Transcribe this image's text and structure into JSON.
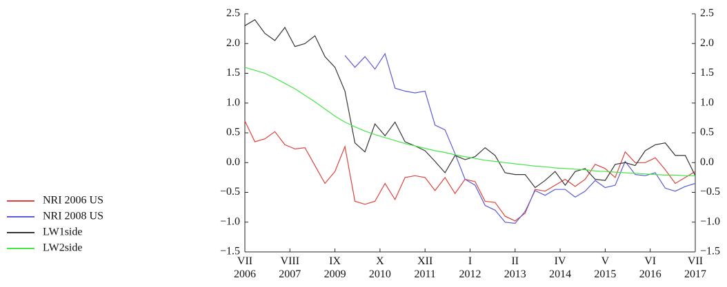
{
  "chart_data": {
    "type": "line",
    "x": [
      0,
      1,
      2,
      3,
      4,
      5,
      6,
      7,
      8,
      9,
      10,
      11,
      12,
      13,
      14,
      15,
      16,
      17,
      18,
      19,
      20,
      21,
      22,
      23,
      24,
      25,
      26,
      27,
      28,
      29,
      30,
      31,
      32,
      33,
      34,
      35,
      36,
      37,
      38,
      39,
      40,
      41,
      42,
      43,
      44,
      45
    ],
    "xlim": [
      0,
      45
    ],
    "xticks": [
      {
        "value": 0,
        "label": "VII\n2006"
      },
      {
        "value": 4.5,
        "label": "VIII\n2007"
      },
      {
        "value": 9,
        "label": "IX\n2009"
      },
      {
        "value": 13.5,
        "label": "X\n2010"
      },
      {
        "value": 18,
        "label": "XII\n2011"
      },
      {
        "value": 22.5,
        "label": "I\n2012"
      },
      {
        "value": 27,
        "label": "II\n2013"
      },
      {
        "value": 31.5,
        "label": "IV\n2014"
      },
      {
        "value": 36,
        "label": "V\n2015"
      },
      {
        "value": 40.5,
        "label": "VI\n2016"
      },
      {
        "value": 45,
        "label": "VII\n2017"
      }
    ],
    "ylim": [
      -1.5,
      2.5
    ],
    "yticks": [
      {
        "value": -1.5,
        "label": "−1.5"
      },
      {
        "value": -1,
        "label": "−1.0"
      },
      {
        "value": -0.5,
        "label": "−0.5"
      },
      {
        "value": 0,
        "label": "0.0"
      },
      0.5,
      {
        "value": 1,
        "label": "1.0"
      },
      1.5,
      {
        "value": 2,
        "label": "2.0"
      },
      2.5
    ],
    "y2lim": [
      -1.5,
      2.5
    ],
    "y2ticks": [
      {
        "value": -1.5,
        "label": "−1.5"
      },
      {
        "value": -1,
        "label": "−1.0"
      },
      {
        "value": -0.5,
        "label": "−0.5"
      },
      {
        "value": 0,
        "label": "0.0"
      },
      0.5,
      {
        "value": 1,
        "label": "1.0"
      },
      1.5,
      {
        "value": 2,
        "label": "2.0"
      },
      2.5
    ],
    "legend": "left",
    "series": [
      {
        "name": "NRI 2006 US",
        "color": "#e0403a",
        "values": [
          0.7,
          0.35,
          0.4,
          0.52,
          0.3,
          0.23,
          0.25,
          -0.05,
          -0.35,
          -0.15,
          0.27,
          -0.65,
          -0.7,
          -0.65,
          -0.35,
          -0.62,
          -0.25,
          -0.22,
          -0.25,
          -0.47,
          -0.25,
          -0.52,
          -0.28,
          -0.32,
          -0.65,
          -0.67,
          -0.9,
          -0.98,
          -0.85,
          -0.45,
          -0.48,
          -0.38,
          -0.28,
          -0.4,
          -0.28,
          -0.03,
          -0.1,
          -0.25,
          0.18,
          0.0,
          0.0,
          0.08,
          -0.12,
          -0.35,
          -0.25,
          -0.15
        ]
      },
      {
        "name": "NRI 2008 US",
        "color": "#5a5ad8",
        "values": [
          null,
          null,
          null,
          null,
          null,
          null,
          null,
          null,
          null,
          null,
          1.8,
          1.6,
          1.78,
          1.57,
          1.83,
          1.25,
          1.2,
          1.17,
          1.2,
          0.63,
          0.55,
          0.15,
          -0.28,
          -0.38,
          -0.72,
          -0.8,
          -1.0,
          -1.02,
          -0.82,
          -0.47,
          -0.55,
          -0.45,
          -0.45,
          -0.58,
          -0.48,
          -0.3,
          -0.42,
          -0.38,
          0.02,
          -0.2,
          -0.22,
          -0.17,
          -0.43,
          -0.48,
          -0.4,
          -0.35
        ]
      },
      {
        "name": "LW1side",
        "color": "#333333",
        "values": [
          2.3,
          2.4,
          2.17,
          2.05,
          2.27,
          1.95,
          2.0,
          2.13,
          1.78,
          1.6,
          1.2,
          0.33,
          0.18,
          0.65,
          0.45,
          0.68,
          0.35,
          0.28,
          0.2,
          0.02,
          -0.17,
          0.12,
          0.05,
          0.1,
          0.25,
          0.12,
          -0.17,
          -0.2,
          -0.2,
          -0.42,
          -0.3,
          -0.15,
          -0.38,
          -0.15,
          -0.1,
          -0.28,
          -0.3,
          -0.03,
          0.0,
          -0.05,
          0.2,
          0.3,
          0.33,
          0.12,
          0.12,
          -0.22
        ]
      },
      {
        "name": "LW2side",
        "color": "#44e644",
        "values": [
          1.6,
          1.55,
          1.5,
          1.42,
          1.33,
          1.24,
          1.13,
          1.02,
          0.9,
          0.78,
          0.68,
          0.6,
          0.53,
          0.47,
          0.42,
          0.37,
          0.32,
          0.28,
          0.24,
          0.2,
          0.17,
          0.13,
          0.1,
          0.07,
          0.04,
          0.02,
          0.0,
          -0.02,
          -0.04,
          -0.06,
          -0.07,
          -0.09,
          -0.1,
          -0.11,
          -0.12,
          -0.14,
          -0.15,
          -0.16,
          -0.17,
          -0.18,
          -0.19,
          -0.2,
          -0.21,
          -0.21,
          -0.22,
          -0.22
        ]
      }
    ]
  }
}
